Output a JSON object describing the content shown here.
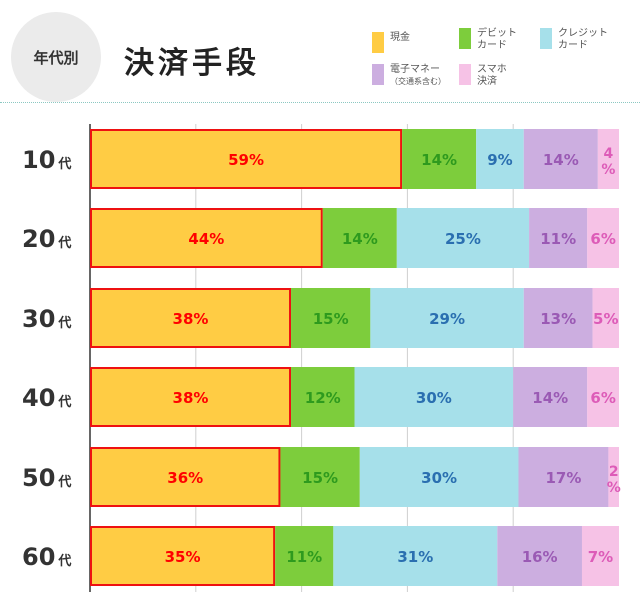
{
  "header": {
    "badge": "年代別",
    "title": "決済手段"
  },
  "legend": [
    {
      "label": "現金",
      "color": "#ffcc44"
    },
    {
      "label": "デビット\nカード",
      "color": "#7dcd3c"
    },
    {
      "label": "クレジット\nカード",
      "color": "#a6e0ea"
    },
    {
      "label": "電子マネー",
      "label2": "（交通系含む）",
      "color": "#ccaee0"
    },
    {
      "label": "スマホ\n決済",
      "color": "#f6c2e6"
    }
  ],
  "chart_data": {
    "type": "bar",
    "orientation": "horizontal",
    "stacked": true,
    "percent_stacked": true,
    "categories": [
      "10代",
      "20代",
      "30代",
      "40代",
      "50代",
      "60代"
    ],
    "series": [
      {
        "name": "現金",
        "color": "#ffcc44",
        "label_color": "#ff0000",
        "values": [
          59,
          44,
          38,
          38,
          36,
          35
        ]
      },
      {
        "name": "デビットカード",
        "color": "#7dcd3c",
        "label_color": "#2e9a1e",
        "values": [
          14,
          14,
          15,
          12,
          15,
          11
        ]
      },
      {
        "name": "クレジットカード",
        "color": "#a6e0ea",
        "label_color": "#2a6fb0",
        "values": [
          9,
          25,
          29,
          30,
          30,
          31
        ]
      },
      {
        "name": "電子マネー（交通系含む）",
        "color": "#ccaee0",
        "label_color": "#9a5ab4",
        "values": [
          14,
          11,
          13,
          14,
          17,
          16
        ]
      },
      {
        "name": "スマホ決済",
        "color": "#f6c2e6",
        "label_color": "#dd5cb8",
        "values": [
          4,
          6,
          5,
          6,
          2,
          7
        ]
      }
    ],
    "value_suffix": "%",
    "highlight_series": "現金",
    "highlight_color": "#ee1111",
    "xlim": [
      0,
      100
    ],
    "grid": true,
    "legend_position": "top-right"
  }
}
